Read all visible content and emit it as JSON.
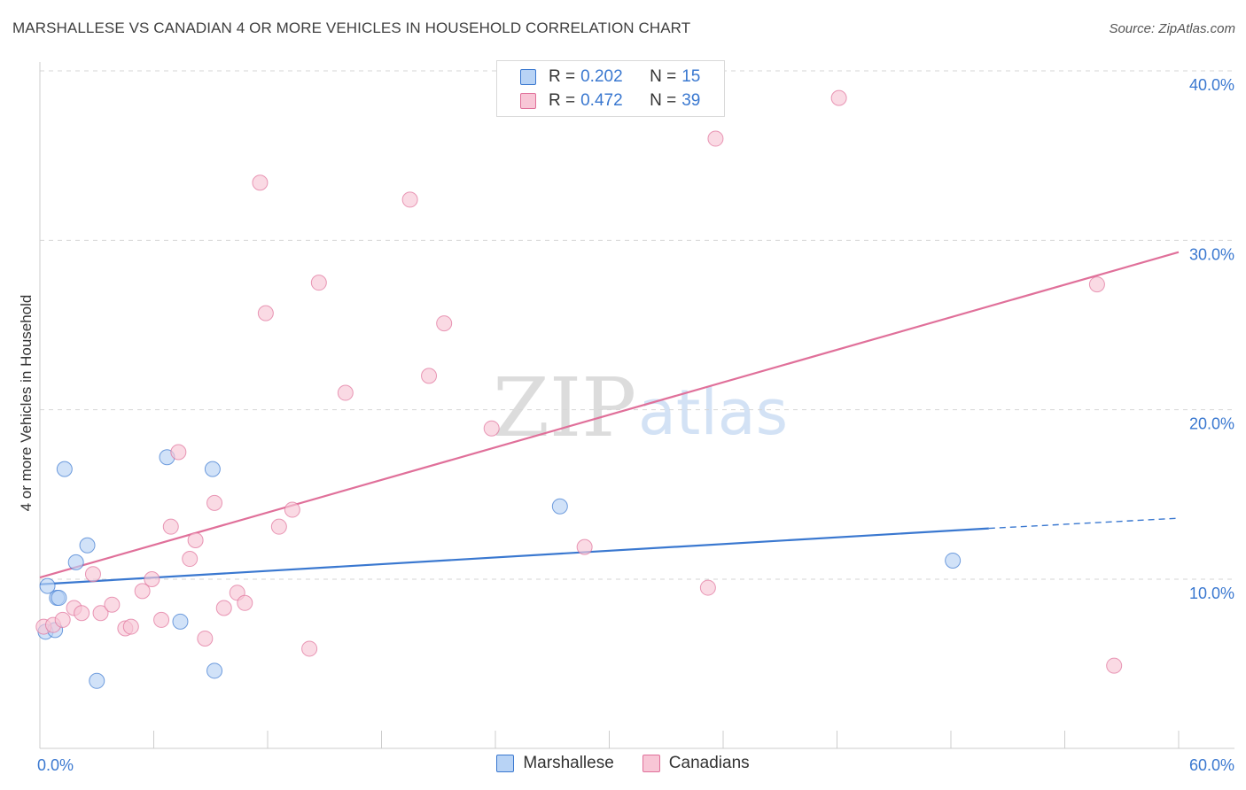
{
  "title": "MARSHALLESE VS CANADIAN 4 OR MORE VEHICLES IN HOUSEHOLD CORRELATION CHART",
  "source": "Source: ZipAtlas.com",
  "watermark": {
    "zip": "ZIP",
    "atlas": "atlas"
  },
  "colors": {
    "blue": "#3a78d0",
    "blue_fill": "#b8d3f5",
    "pink": "#e0709a",
    "pink_fill": "#f8c6d6",
    "grid": "#d6d6d6",
    "axis_text": "#3a78d0"
  },
  "legend": {
    "rows": [
      {
        "r_label": "R =",
        "r_value": "0.202",
        "n_label": "N =",
        "n_value": "15"
      },
      {
        "r_label": "R =",
        "r_value": "0.472",
        "n_label": "N =",
        "n_value": "39"
      }
    ]
  },
  "bottom_legend": [
    "Marshallese",
    "Canadians"
  ],
  "chart_data": {
    "type": "scatter",
    "title": "MARSHALLESE VS CANADIAN 4 OR MORE VEHICLES IN HOUSEHOLD CORRELATION CHART",
    "xlabel": "",
    "ylabel": "4 or more Vehicles in Household",
    "xlim": [
      0,
      60
    ],
    "ylim": [
      0,
      41
    ],
    "x_tick_labels": [
      {
        "value": 0,
        "label": "0.0%"
      },
      {
        "value": 60,
        "label": "60.0%"
      }
    ],
    "y_tick_labels": [
      {
        "value": 10,
        "label": "10.0%"
      },
      {
        "value": 20,
        "label": "20.0%"
      },
      {
        "value": 30,
        "label": "30.0%"
      },
      {
        "value": 40,
        "label": "40.0%"
      }
    ],
    "series": [
      {
        "name": "Marshallese",
        "color": "#3a78d0",
        "points": [
          [
            0.3,
            6.9
          ],
          [
            0.4,
            9.6
          ],
          [
            0.8,
            7.0
          ],
          [
            0.9,
            8.9
          ],
          [
            1.0,
            8.9
          ],
          [
            1.3,
            16.5
          ],
          [
            1.9,
            11.0
          ],
          [
            2.5,
            12.0
          ],
          [
            3.0,
            4.0
          ],
          [
            6.7,
            17.2
          ],
          [
            7.4,
            7.5
          ],
          [
            9.1,
            16.5
          ],
          [
            9.2,
            4.6
          ],
          [
            27.4,
            14.3
          ],
          [
            48.1,
            11.1
          ]
        ],
        "trend": {
          "x0": 0,
          "y0": 9.7,
          "x1": 50,
          "y1": 13.0,
          "x_dash_end": 60,
          "y_dash_end": 13.6
        }
      },
      {
        "name": "Canadians",
        "color": "#e0709a",
        "points": [
          [
            0.2,
            7.2
          ],
          [
            0.7,
            7.3
          ],
          [
            1.2,
            7.6
          ],
          [
            1.8,
            8.3
          ],
          [
            2.2,
            8.0
          ],
          [
            2.8,
            10.3
          ],
          [
            3.2,
            8.0
          ],
          [
            3.8,
            8.5
          ],
          [
            4.5,
            7.1
          ],
          [
            4.8,
            7.2
          ],
          [
            5.4,
            9.3
          ],
          [
            5.9,
            10.0
          ],
          [
            6.4,
            7.6
          ],
          [
            6.9,
            13.1
          ],
          [
            7.3,
            17.5
          ],
          [
            7.9,
            11.2
          ],
          [
            8.2,
            12.3
          ],
          [
            8.7,
            6.5
          ],
          [
            9.2,
            14.5
          ],
          [
            9.7,
            8.3
          ],
          [
            10.4,
            9.2
          ],
          [
            10.8,
            8.6
          ],
          [
            11.6,
            33.4
          ],
          [
            11.9,
            25.7
          ],
          [
            12.6,
            13.1
          ],
          [
            13.3,
            14.1
          ],
          [
            14.2,
            5.9
          ],
          [
            14.7,
            27.5
          ],
          [
            16.1,
            21.0
          ],
          [
            19.5,
            32.4
          ],
          [
            20.5,
            22.0
          ],
          [
            21.3,
            25.1
          ],
          [
            23.8,
            18.9
          ],
          [
            28.7,
            11.9
          ],
          [
            35.2,
            9.5
          ],
          [
            35.6,
            36.0
          ],
          [
            42.1,
            38.4
          ],
          [
            55.7,
            27.4
          ],
          [
            56.6,
            4.9
          ]
        ],
        "trend": {
          "x0": 0,
          "y0": 10.1,
          "x1": 60,
          "y1": 29.3
        }
      }
    ]
  }
}
